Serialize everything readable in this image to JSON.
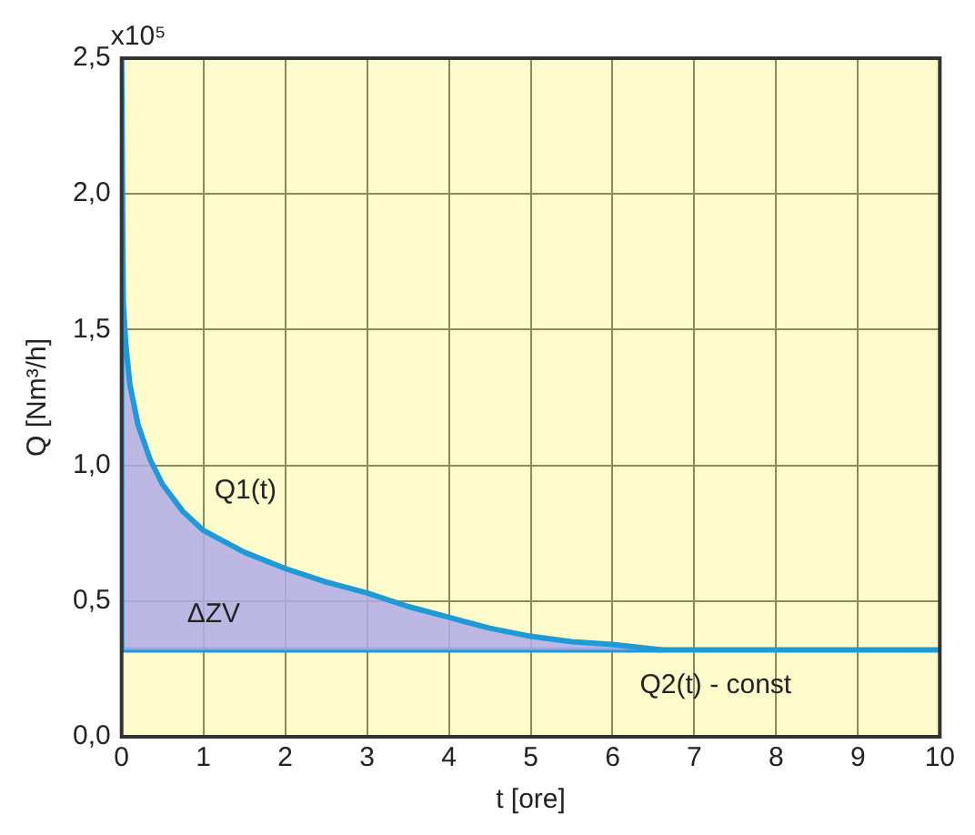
{
  "chart_data": {
    "type": "line",
    "xlabel": "t [ore]",
    "ylabel": "Q [Nm³/h]",
    "annotations": [
      "x10⁵",
      "ΔZV"
    ],
    "xlim": [
      0,
      10
    ],
    "xticks": [
      0,
      1,
      2,
      3,
      4,
      5,
      6,
      7,
      8,
      9,
      10
    ],
    "ylim": [
      0,
      2.5
    ],
    "yticks": [
      {
        "value": 0,
        "label": "0,0"
      },
      {
        "value": 0.5,
        "label": "0,5"
      },
      {
        "value": 1,
        "label": "1,0"
      },
      {
        "value": 1.5,
        "label": "1,5"
      },
      {
        "value": 2,
        "label": "2,0"
      },
      {
        "value": 2.5,
        "label": "2,5"
      }
    ],
    "grid": true,
    "legend": false,
    "marker": "none",
    "line_style": "solid",
    "series": [
      {
        "name": "Q1(t)",
        "type": "area",
        "color": "#1e9ad6",
        "x": [
          0,
          0,
          0.02,
          0.05,
          0.1,
          0.2,
          0.35,
          0.5,
          0.75,
          1,
          1.5,
          2,
          2.5,
          3,
          3.5,
          4,
          4.5,
          5,
          5.5,
          6,
          6.6
        ],
        "values": [
          0.32,
          2.5,
          1.6,
          1.45,
          1.3,
          1.15,
          1.02,
          0.93,
          0.83,
          0.76,
          0.68,
          0.62,
          0.57,
          0.53,
          0.48,
          0.44,
          0.4,
          0.37,
          0.35,
          0.34,
          0.32
        ]
      },
      {
        "name": "Q2(t) - const",
        "type": "line",
        "color": "#1e9ad6",
        "x": [
          0,
          10
        ],
        "values": [
          0.32,
          0.32
        ]
      }
    ]
  }
}
